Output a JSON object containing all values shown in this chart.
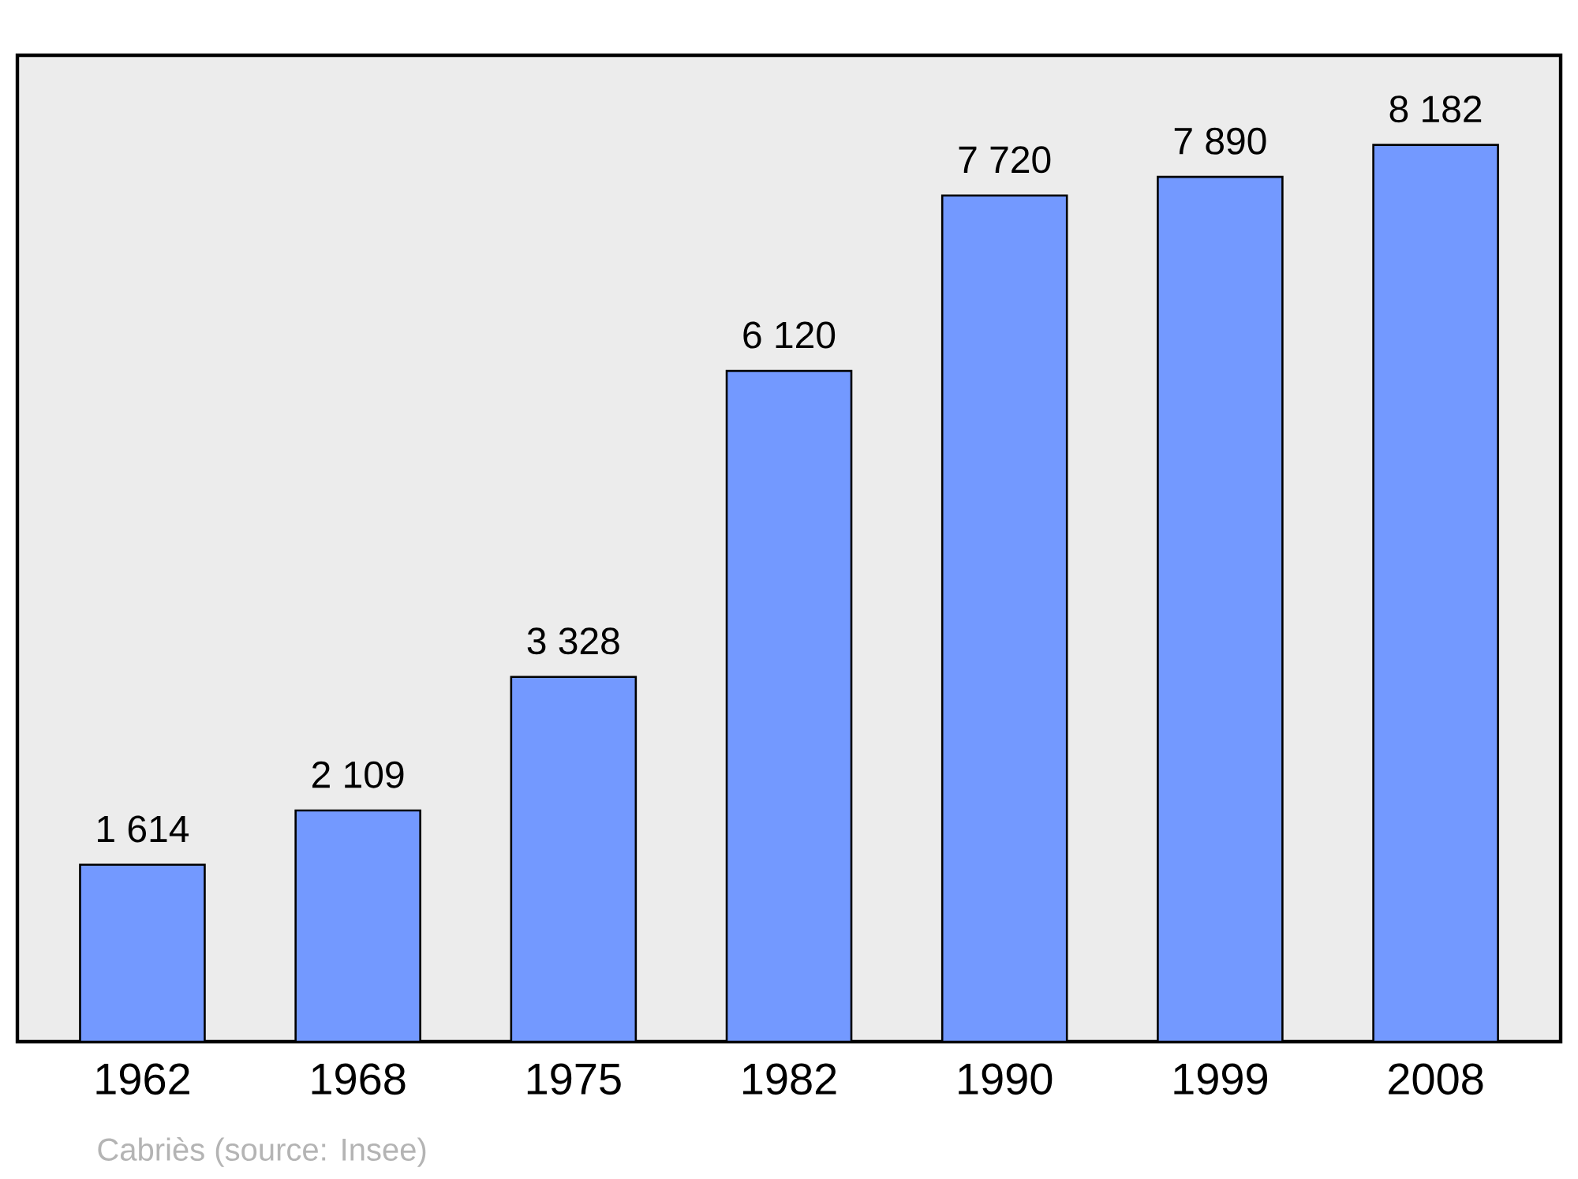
{
  "chart_data": {
    "type": "bar",
    "categories": [
      "1962",
      "1968",
      "1975",
      "1982",
      "1990",
      "1999",
      "2008"
    ],
    "values": [
      1614,
      2109,
      3328,
      6120,
      7720,
      7890,
      8182
    ],
    "value_labels": [
      "1 614",
      "2 109",
      "3 328",
      "6 120",
      "7 720",
      "7 890",
      "8 182"
    ],
    "color": "#7399ff",
    "ylim": [
      0,
      9000
    ],
    "tick_labels": "x",
    "annotations": [
      "Cabriès    (source: Insee)"
    ]
  }
}
